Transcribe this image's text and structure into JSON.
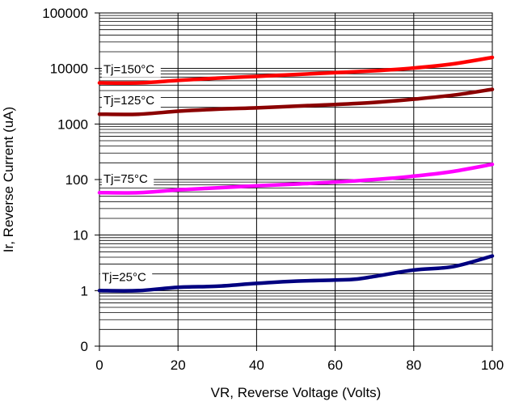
{
  "chart_data": {
    "type": "line",
    "xlabel": "VR, Reverse Voltage (Volts)",
    "ylabel": "Ir, Reverse Current (uA)",
    "xlim": [
      0,
      100
    ],
    "x_ticks": [
      0,
      20,
      40,
      60,
      80,
      100
    ],
    "x_tick_labels": [
      "0",
      "20",
      "40",
      "60",
      "80",
      "100"
    ],
    "y_scale": "log",
    "y_tick_labels": [
      "0",
      "1",
      "10",
      "100",
      "1000",
      "10000",
      "100000"
    ],
    "grid": true,
    "series": [
      {
        "name": "Tj=150°C",
        "color": "#ff0000",
        "x": [
          0,
          10,
          20,
          30,
          40,
          50,
          60,
          70,
          80,
          90,
          100
        ],
        "y": [
          5500,
          5500,
          6100,
          6700,
          7200,
          7800,
          8400,
          9100,
          10200,
          12100,
          15800
        ]
      },
      {
        "name": "Tj=125°C",
        "color": "#8b0000",
        "x": [
          0,
          10,
          20,
          30,
          40,
          50,
          60,
          70,
          80,
          90,
          100
        ],
        "y": [
          1500,
          1500,
          1700,
          1850,
          1950,
          2100,
          2250,
          2450,
          2800,
          3300,
          4200
        ]
      },
      {
        "name": "Tj=75°C",
        "color": "#ff00ff",
        "x": [
          0,
          10,
          20,
          30,
          40,
          50,
          60,
          70,
          80,
          90,
          100
        ],
        "y": [
          58,
          58,
          65,
          71,
          77,
          83,
          90,
          100,
          115,
          140,
          188
        ]
      },
      {
        "name": "Tj=25°C",
        "color": "#000080",
        "x": [
          0,
          10,
          20,
          30,
          40,
          50,
          60,
          65,
          70,
          80,
          90,
          100
        ],
        "y": [
          1.0,
          1.0,
          1.15,
          1.2,
          1.35,
          1.48,
          1.55,
          1.6,
          1.8,
          2.35,
          2.7,
          4.2
        ]
      }
    ]
  }
}
